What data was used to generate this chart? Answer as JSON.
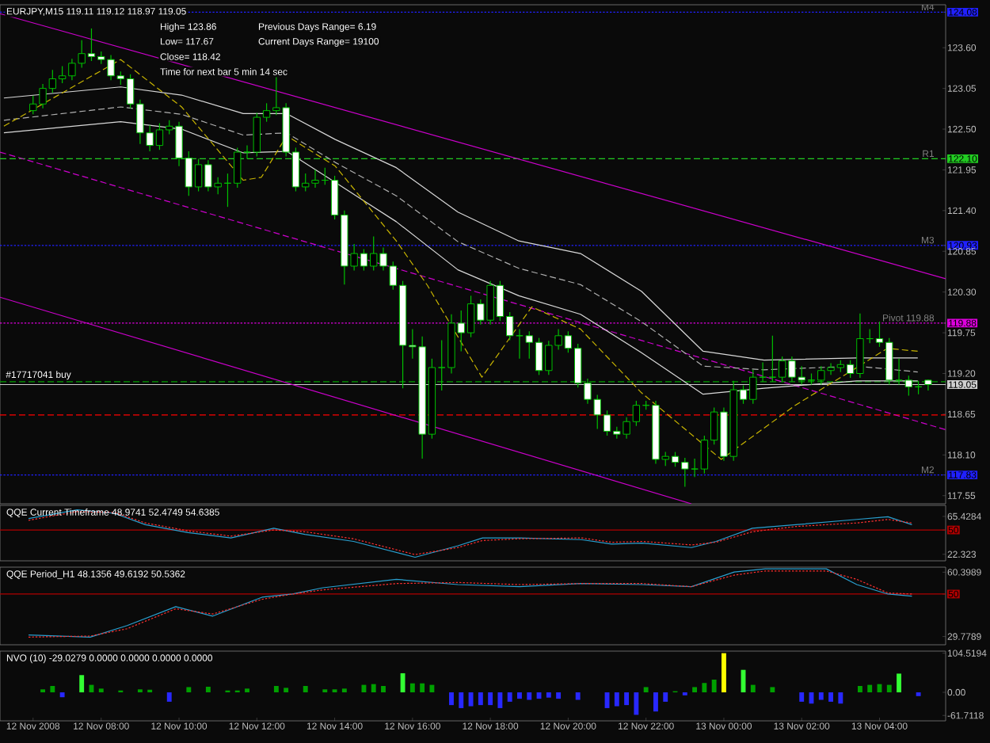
{
  "chart_data": [
    {
      "type": "candlestick",
      "title": "EURJPY,M15 119.11 119.12 118.97 119.05",
      "annotations": [
        "High= 123.86",
        "Previous Days Range= 6.19",
        "Low= 117.67",
        "Current Days Range= 19100",
        "Close= 118.42",
        "Time for next bar 5 min 14 sec",
        {
          "text": "#17717041 buy",
          "x": "2008-11-12T05:30",
          "y": 119.09
        }
      ],
      "x": [
        "2008-11-12T06:15",
        "2008-11-12T06:30",
        "2008-11-12T06:45",
        "2008-11-12T07:00",
        "2008-11-12T07:15",
        "2008-11-12T07:30",
        "2008-11-12T07:45",
        "2008-11-12T08:00",
        "2008-11-12T08:15",
        "2008-11-12T08:30",
        "2008-11-12T08:45",
        "2008-11-12T09:00",
        "2008-11-12T09:15",
        "2008-11-12T09:30",
        "2008-11-12T09:45",
        "2008-11-12T10:00",
        "2008-11-12T10:15",
        "2008-11-12T10:30",
        "2008-11-12T10:45",
        "2008-11-12T11:00",
        "2008-11-12T11:15",
        "2008-11-12T11:30",
        "2008-11-12T11:45",
        "2008-11-12T12:00",
        "2008-11-12T12:15",
        "2008-11-12T12:30",
        "2008-11-12T12:45",
        "2008-11-12T13:00",
        "2008-11-12T13:15",
        "2008-11-12T13:30",
        "2008-11-12T13:45",
        "2008-11-12T14:00",
        "2008-11-12T14:15",
        "2008-11-12T14:30",
        "2008-11-12T14:45",
        "2008-11-12T15:00",
        "2008-11-12T15:15",
        "2008-11-12T15:30",
        "2008-11-12T15:45",
        "2008-11-12T16:00",
        "2008-11-12T16:15",
        "2008-11-12T16:30",
        "2008-11-12T16:45",
        "2008-11-12T17:00",
        "2008-11-12T17:15",
        "2008-11-12T17:30",
        "2008-11-12T17:45",
        "2008-11-12T18:00",
        "2008-11-12T18:15",
        "2008-11-12T18:30",
        "2008-11-12T18:45",
        "2008-11-12T19:00",
        "2008-11-12T19:15",
        "2008-11-12T19:30",
        "2008-11-12T19:45",
        "2008-11-12T20:00",
        "2008-11-12T20:15",
        "2008-11-12T20:30",
        "2008-11-12T20:45",
        "2008-11-12T21:00",
        "2008-11-12T21:15",
        "2008-11-12T21:30",
        "2008-11-12T21:45",
        "2008-11-12T22:00",
        "2008-11-12T22:15",
        "2008-11-12T22:30",
        "2008-11-12T22:45",
        "2008-11-12T23:00",
        "2008-11-12T23:15",
        "2008-11-12T23:30",
        "2008-11-12T23:45",
        "2008-11-13T00:00",
        "2008-11-13T00:15",
        "2008-11-13T00:30",
        "2008-11-13T00:45",
        "2008-11-13T01:00",
        "2008-11-13T01:15",
        "2008-11-13T01:30",
        "2008-11-13T01:45",
        "2008-11-13T02:00",
        "2008-11-13T02:15",
        "2008-11-13T02:30",
        "2008-11-13T02:45",
        "2008-11-13T03:00",
        "2008-11-13T03:15",
        "2008-11-13T03:30",
        "2008-11-13T03:45",
        "2008-11-13T04:00",
        "2008-11-13T04:15",
        "2008-11-13T04:30",
        "2008-11-13T04:45",
        "2008-11-13T05:00",
        "2008-11-13T05:15"
      ],
      "ohlc": [
        [
          122.75,
          122.95,
          122.7,
          122.84
        ],
        [
          122.84,
          123.11,
          122.78,
          123.05
        ],
        [
          123.05,
          123.3,
          122.99,
          123.18
        ],
        [
          123.18,
          123.35,
          123.12,
          123.22
        ],
        [
          123.22,
          123.45,
          123.16,
          123.39
        ],
        [
          123.39,
          123.7,
          123.33,
          123.52
        ],
        [
          123.52,
          123.86,
          123.42,
          123.48
        ],
        [
          123.48,
          123.55,
          123.38,
          123.44
        ],
        [
          123.44,
          123.5,
          123.16,
          123.22
        ],
        [
          123.22,
          123.28,
          123.1,
          123.18
        ],
        [
          123.18,
          123.24,
          122.78,
          122.84
        ],
        [
          122.84,
          122.9,
          122.3,
          122.45
        ],
        [
          122.45,
          122.55,
          122.2,
          122.28
        ],
        [
          122.28,
          122.58,
          122.22,
          122.49
        ],
        [
          122.49,
          122.62,
          122.43,
          122.54
        ],
        [
          122.54,
          122.6,
          122.0,
          122.11
        ],
        [
          122.11,
          122.2,
          121.6,
          121.72
        ],
        [
          121.72,
          122.1,
          121.66,
          122.02
        ],
        [
          122.02,
          122.08,
          121.66,
          121.72
        ],
        [
          121.72,
          121.85,
          121.62,
          121.77
        ],
        [
          121.77,
          121.9,
          121.45,
          121.77
        ],
        [
          121.77,
          122.25,
          121.71,
          122.19
        ],
        [
          122.19,
          122.28,
          122.1,
          122.19
        ],
        [
          122.19,
          122.72,
          122.13,
          122.66
        ],
        [
          122.66,
          122.85,
          122.6,
          122.75
        ],
        [
          122.75,
          123.2,
          122.69,
          122.79
        ],
        [
          122.79,
          122.85,
          122.13,
          122.19
        ],
        [
          122.19,
          122.25,
          121.66,
          121.72
        ],
        [
          121.72,
          121.9,
          121.66,
          121.77
        ],
        [
          121.77,
          121.95,
          121.71,
          121.81
        ],
        [
          121.81,
          121.98,
          121.75,
          121.81
        ],
        [
          121.81,
          121.87,
          121.28,
          121.34
        ],
        [
          121.34,
          121.4,
          120.4,
          120.65
        ],
        [
          120.65,
          120.95,
          120.59,
          120.82
        ],
        [
          120.82,
          120.88,
          120.59,
          120.65
        ],
        [
          120.65,
          121.05,
          120.59,
          120.82
        ],
        [
          120.82,
          120.9,
          120.59,
          120.65
        ],
        [
          120.65,
          120.71,
          120.33,
          120.39
        ],
        [
          120.39,
          120.45,
          119.0,
          119.58
        ],
        [
          119.58,
          119.8,
          119.4,
          119.56
        ],
        [
          119.56,
          119.7,
          118.05,
          118.38
        ],
        [
          118.38,
          119.4,
          118.32,
          119.28
        ],
        [
          119.28,
          119.65,
          118.97,
          119.28
        ],
        [
          119.28,
          120.0,
          119.2,
          119.88
        ],
        [
          119.88,
          120.05,
          119.5,
          119.75
        ],
        [
          119.75,
          120.25,
          119.69,
          120.14
        ],
        [
          120.14,
          120.2,
          119.86,
          119.92
        ],
        [
          119.92,
          120.45,
          119.86,
          120.39
        ],
        [
          120.39,
          120.45,
          119.91,
          119.97
        ],
        [
          119.97,
          120.03,
          119.65,
          119.71
        ],
        [
          119.71,
          119.8,
          119.4,
          119.71
        ],
        [
          119.71,
          119.77,
          119.4,
          119.62
        ],
        [
          119.62,
          119.68,
          119.18,
          119.24
        ],
        [
          119.24,
          119.64,
          119.18,
          119.58
        ],
        [
          119.58,
          119.8,
          119.52,
          119.71
        ],
        [
          119.71,
          119.77,
          119.48,
          119.54
        ],
        [
          119.54,
          119.6,
          119.01,
          119.07
        ],
        [
          119.07,
          119.13,
          118.79,
          118.85
        ],
        [
          118.85,
          118.91,
          118.45,
          118.64
        ],
        [
          118.64,
          118.7,
          118.36,
          118.42
        ],
        [
          118.42,
          118.48,
          118.32,
          118.38
        ],
        [
          118.38,
          118.61,
          118.32,
          118.55
        ],
        [
          118.55,
          118.83,
          118.49,
          118.77
        ],
        [
          118.77,
          118.83,
          118.71,
          118.77
        ],
        [
          118.77,
          118.83,
          117.98,
          118.04
        ],
        [
          118.04,
          118.14,
          117.95,
          118.08
        ],
        [
          118.08,
          118.14,
          117.94,
          118.0
        ],
        [
          118.0,
          118.06,
          117.67,
          117.91
        ],
        [
          117.91,
          118.05,
          117.8,
          117.91
        ],
        [
          117.91,
          118.36,
          117.85,
          118.3
        ],
        [
          118.3,
          118.74,
          118.24,
          118.68
        ],
        [
          118.68,
          118.74,
          118.02,
          118.08
        ],
        [
          118.08,
          119.1,
          118.02,
          118.98
        ],
        [
          118.98,
          119.04,
          118.79,
          118.85
        ],
        [
          118.85,
          119.25,
          118.79,
          119.15
        ],
        [
          119.15,
          119.35,
          119.09,
          119.15
        ],
        [
          119.15,
          119.71,
          119.09,
          119.15
        ],
        [
          119.15,
          119.43,
          119.09,
          119.37
        ],
        [
          119.37,
          119.43,
          119.09,
          119.15
        ],
        [
          119.15,
          119.3,
          119.05,
          119.11
        ],
        [
          119.11,
          119.2,
          119.05,
          119.11
        ],
        [
          119.11,
          119.3,
          119.05,
          119.24
        ],
        [
          119.24,
          119.34,
          119.18,
          119.28
        ],
        [
          119.28,
          119.38,
          119.22,
          119.32
        ],
        [
          119.32,
          119.38,
          119.14,
          119.2
        ],
        [
          119.2,
          120.01,
          119.14,
          119.67
        ],
        [
          119.67,
          119.8,
          119.61,
          119.67
        ],
        [
          119.67,
          119.9,
          119.56,
          119.62
        ],
        [
          119.62,
          119.68,
          119.05,
          119.11
        ],
        [
          119.11,
          119.4,
          119.05,
          119.11
        ],
        [
          119.11,
          119.17,
          118.9,
          119.02
        ],
        [
          119.02,
          119.1,
          118.92,
          119.02
        ],
        [
          119.11,
          119.12,
          118.97,
          119.05
        ]
      ],
      "series": [
        {
          "type": "line",
          "color": "#cc00cc",
          "line_style": "solid",
          "x": [
            "2008-11-12T05:24",
            "2008-11-13T05:42"
          ],
          "values": [
            124.06,
            120.48
          ]
        },
        {
          "type": "line",
          "color": "#cc00cc",
          "line_style": "dashed",
          "x": [
            "2008-11-12T05:24",
            "2008-11-13T05:42"
          ],
          "values": [
            122.19,
            118.44
          ]
        },
        {
          "type": "line",
          "color": "#cc00cc",
          "line_style": "solid",
          "x": [
            "2008-11-12T05:24",
            "2008-11-12T23:10"
          ],
          "values": [
            120.23,
            117.44
          ]
        },
        {
          "type": "line",
          "color": "#d8d8d8",
          "line_style": "solid",
          "x": [
            "2008-11-12T05:30",
            "2008-11-12T08:30",
            "2008-11-12T10:04",
            "2008-11-12T11:39",
            "2008-11-12T12:46",
            "2008-11-12T14:01",
            "2008-11-12T15:35",
            "2008-11-12T17:10",
            "2008-11-12T18:44",
            "2008-11-12T20:19",
            "2008-11-12T21:53",
            "2008-11-12T23:28",
            "2008-11-13T01:02",
            "2008-11-13T03:25",
            "2008-11-13T04:59"
          ],
          "values": [
            122.92,
            123.07,
            122.96,
            122.71,
            122.71,
            122.36,
            121.98,
            121.38,
            120.99,
            120.82,
            120.31,
            119.5,
            119.38,
            119.41,
            119.41
          ]
        },
        {
          "type": "line",
          "color": "#b0b0b0",
          "line_style": "dashed",
          "x": [
            "2008-11-12T05:30",
            "2008-11-12T08:30",
            "2008-11-12T10:04",
            "2008-11-12T11:39",
            "2008-11-12T12:46",
            "2008-11-12T14:01",
            "2008-11-12T15:35",
            "2008-11-12T17:10",
            "2008-11-12T18:44",
            "2008-11-12T20:19",
            "2008-11-12T21:53",
            "2008-11-12T23:28",
            "2008-11-13T01:02",
            "2008-11-13T03:25",
            "2008-11-13T04:59"
          ],
          "values": [
            122.62,
            122.8,
            122.7,
            122.42,
            122.45,
            122.05,
            121.6,
            120.98,
            120.62,
            120.4,
            119.9,
            119.3,
            119.25,
            119.3,
            119.22
          ]
        },
        {
          "type": "line",
          "color": "#d8d8d8",
          "line_style": "solid",
          "x": [
            "2008-11-12T05:30",
            "2008-11-12T08:30",
            "2008-11-12T10:04",
            "2008-11-12T11:39",
            "2008-11-12T12:46",
            "2008-11-12T14:01",
            "2008-11-12T15:35",
            "2008-11-12T17:10",
            "2008-11-12T18:44",
            "2008-11-12T20:19",
            "2008-11-12T21:53",
            "2008-11-12T23:28",
            "2008-11-13T01:02",
            "2008-11-13T03:25",
            "2008-11-13T04:59"
          ],
          "values": [
            122.45,
            122.6,
            122.5,
            122.18,
            122.2,
            121.78,
            121.25,
            120.6,
            120.25,
            120.0,
            119.48,
            118.92,
            119.0,
            119.1,
            119.1
          ]
        },
        {
          "type": "line",
          "color": "#c8b400",
          "line_style": "dashed",
          "x": [
            "2008-11-12T05:30",
            "2008-11-12T08:30",
            "2008-11-12T10:04",
            "2008-11-12T11:39",
            "2008-11-12T12:07",
            "2008-11-12T12:46",
            "2008-11-12T14:01",
            "2008-11-12T15:35",
            "2008-11-12T16:23",
            "2008-11-12T17:47",
            "2008-11-12T19:04",
            "2008-11-12T20:19",
            "2008-11-12T21:53",
            "2008-11-12T23:56",
            "2008-11-13T01:50",
            "2008-11-13T03:25",
            "2008-11-13T04:12",
            "2008-11-13T04:59"
          ],
          "values": [
            122.54,
            123.44,
            122.8,
            121.81,
            121.85,
            122.41,
            122.0,
            120.99,
            120.39,
            119.15,
            120.1,
            119.8,
            118.94,
            118.04,
            118.77,
            119.28,
            119.54,
            119.5
          ]
        }
      ],
      "ref_lines": [
        {
          "axis": "y",
          "value": 124.08,
          "label": "M4",
          "color": "#2020ff",
          "line_style": "dotted"
        },
        {
          "axis": "y",
          "value": 122.1,
          "label": "R1",
          "color": "#22cc22",
          "line_style": "dashed"
        },
        {
          "axis": "y",
          "value": 120.93,
          "label": "M3",
          "color": "#2020ff",
          "line_style": "dotted"
        },
        {
          "axis": "y",
          "value": 119.88,
          "label": "Pivot 119.88",
          "color": "#dd00dd",
          "line_style": "dotted"
        },
        {
          "axis": "y",
          "value": 119.09,
          "color": "#00a000",
          "line_style": "dashed"
        },
        {
          "axis": "y",
          "value": 119.05,
          "color": "#d0d0d0",
          "line_style": "solid"
        },
        {
          "axis": "y",
          "value": 118.64,
          "color": "#ff0000",
          "line_style": "dashed"
        },
        {
          "axis": "y",
          "value": 117.83,
          "label": "M2",
          "color": "#2020ff",
          "line_style": "dotted"
        }
      ],
      "xlim": [
        "2008-11-12T05:24",
        "2008-11-13T05:42"
      ],
      "ylim": [
        117.44,
        124.18
      ],
      "yticks": [
        124.08,
        {
          "value": 123.6,
          "label": "123.60"
        },
        123.05,
        {
          "value": 122.5,
          "label": "122.50"
        },
        {
          "value": 122.1,
          "label": "122.10"
        },
        121.95,
        {
          "value": 121.4,
          "label": "121.40"
        },
        120.93,
        120.85,
        {
          "value": 120.3,
          "label": "120.30"
        },
        119.88,
        119.75,
        {
          "value": 119.2,
          "label": "119.20"
        },
        119.05,
        118.65,
        {
          "value": 118.1,
          "label": "118.10"
        },
        117.83,
        117.55
      ],
      "tick_labels": "y"
    },
    {
      "type": "line",
      "title": "QQE Current Timeframe 48.9741 52.4749 54.6385",
      "x": [
        "2008-11-12T06:08",
        "2008-11-12T07:23",
        "2008-11-12T08:20",
        "2008-11-12T09:08",
        "2008-11-12T10:14",
        "2008-11-12T11:20",
        "2008-11-12T12:26",
        "2008-11-12T13:14",
        "2008-11-12T14:29",
        "2008-11-12T16:04",
        "2008-11-12T17:10",
        "2008-11-12T17:48",
        "2008-11-12T18:45",
        "2008-11-12T20:20",
        "2008-11-12T21:07",
        "2008-11-12T21:54",
        "2008-11-12T23:10",
        "2008-11-12T23:48",
        "2008-11-13T00:44",
        "2008-11-13T01:51",
        "2008-11-13T03:25",
        "2008-11-13T04:13",
        "2008-11-13T04:50"
      ],
      "series": [
        {
          "color": "#2aa0d0",
          "line_style": "solid",
          "values": [
            63,
            73,
            69,
            56,
            47,
            41,
            52,
            45,
            37,
            19,
            32,
            41,
            41,
            39,
            34,
            35,
            30,
            37,
            52,
            56,
            62,
            65,
            56
          ]
        },
        {
          "color": "#ff3030",
          "line_style": "dotted",
          "values": [
            61,
            71,
            70,
            58,
            49,
            43,
            50,
            48,
            40,
            22,
            30,
            38,
            40,
            41,
            36,
            37,
            33,
            36,
            48,
            54,
            58,
            62,
            58
          ]
        }
      ],
      "ref_lines": [
        {
          "axis": "y",
          "value": 50,
          "color": "#b00000",
          "line_style": "solid"
        }
      ],
      "xlim": [
        "2008-11-12T05:24",
        "2008-11-13T05:42"
      ],
      "ylim": [
        14.9,
        78
      ],
      "yticks": [
        65.4284,
        50,
        22.323
      ],
      "tick_labels": "y"
    },
    {
      "type": "line",
      "title": "QQE Period_H1 48.1356 49.6192 50.5362",
      "x": [
        "2008-11-12T06:08",
        "2008-11-12T07:43",
        "2008-11-12T08:40",
        "2008-11-12T09:55",
        "2008-11-12T10:52",
        "2008-11-12T12:08",
        "2008-11-12T12:55",
        "2008-11-12T13:42",
        "2008-11-12T15:35",
        "2008-11-12T17:10",
        "2008-11-12T18:45",
        "2008-11-12T20:20",
        "2008-11-12T21:54",
        "2008-11-12T23:10",
        "2008-11-13T00:16",
        "2008-11-13T01:04",
        "2008-11-13T02:38",
        "2008-11-13T03:25",
        "2008-11-13T04:13",
        "2008-11-13T04:50"
      ],
      "series": [
        {
          "color": "#2aa0d0",
          "line_style": "solid",
          "values": [
            30.5,
            29.5,
            35,
            44,
            39.5,
            48.5,
            50,
            53,
            57,
            54.5,
            53.5,
            55,
            54.5,
            53.5,
            60.5,
            62,
            62,
            54.5,
            50,
            49
          ]
        },
        {
          "color": "#ff3030",
          "line_style": "dotted",
          "values": [
            29.5,
            30,
            33.5,
            43,
            40.5,
            47.5,
            50,
            52,
            55,
            55.5,
            54.5,
            55,
            55,
            53.5,
            59,
            61,
            61,
            57,
            50.5,
            50
          ]
        }
      ],
      "ref_lines": [
        {
          "axis": "y",
          "value": 50,
          "color": "#b00000",
          "line_style": "solid"
        }
      ],
      "xlim": [
        "2008-11-12T05:24",
        "2008-11-13T05:42"
      ],
      "ylim": [
        25.85,
        62.8
      ],
      "yticks": [
        60.3989,
        50,
        29.7789
      ],
      "tick_labels": "y"
    },
    {
      "type": "bar",
      "title": "NVO (10) -29.0279 0.0000 0.0000 0.0000 0.0000",
      "x": [
        "2008-11-12T06:30",
        "2008-11-12T06:45",
        "2008-11-12T07:00",
        "2008-11-12T07:15",
        "2008-11-12T07:30",
        "2008-11-12T07:45",
        "2008-11-12T08:00",
        "2008-11-12T08:15",
        "2008-11-12T08:30",
        "2008-11-12T08:45",
        "2008-11-12T09:00",
        "2008-11-12T09:15",
        "2008-11-12T09:30",
        "2008-11-12T09:45",
        "2008-11-12T10:00",
        "2008-11-12T10:15",
        "2008-11-12T10:30",
        "2008-11-12T10:45",
        "2008-11-12T11:00",
        "2008-11-12T11:15",
        "2008-11-12T11:30",
        "2008-11-12T11:45",
        "2008-11-12T12:00",
        "2008-11-12T12:15",
        "2008-11-12T12:30",
        "2008-11-12T12:45",
        "2008-11-12T13:00",
        "2008-11-12T13:15",
        "2008-11-12T13:30",
        "2008-11-12T13:45",
        "2008-11-12T14:00",
        "2008-11-12T14:15",
        "2008-11-12T14:30",
        "2008-11-12T14:45",
        "2008-11-12T15:00",
        "2008-11-12T15:15",
        "2008-11-12T15:30",
        "2008-11-12T15:45",
        "2008-11-12T16:00",
        "2008-11-12T16:15",
        "2008-11-12T16:30",
        "2008-11-12T16:45",
        "2008-11-12T17:00",
        "2008-11-12T17:15",
        "2008-11-12T17:30",
        "2008-11-12T17:45",
        "2008-11-12T18:00",
        "2008-11-12T18:15",
        "2008-11-12T18:30",
        "2008-11-12T18:45",
        "2008-11-12T19:00",
        "2008-11-12T19:15",
        "2008-11-12T19:30",
        "2008-11-12T19:45",
        "2008-11-12T20:00",
        "2008-11-12T20:15",
        "2008-11-12T20:30",
        "2008-11-12T20:45",
        "2008-11-12T21:00",
        "2008-11-12T21:15",
        "2008-11-12T21:30",
        "2008-11-12T21:45",
        "2008-11-12T22:00",
        "2008-11-12T22:15",
        "2008-11-12T22:30",
        "2008-11-12T22:45",
        "2008-11-12T23:00",
        "2008-11-12T23:15",
        "2008-11-12T23:30",
        "2008-11-12T23:45",
        "2008-11-13T00:00",
        "2008-11-13T00:15",
        "2008-11-13T00:30",
        "2008-11-13T00:45",
        "2008-11-13T01:00",
        "2008-11-13T01:15",
        "2008-11-13T01:30",
        "2008-11-13T01:45",
        "2008-11-13T02:00",
        "2008-11-13T02:15",
        "2008-11-13T02:30",
        "2008-11-13T02:45",
        "2008-11-13T03:00",
        "2008-11-13T03:15",
        "2008-11-13T03:30",
        "2008-11-13T03:45",
        "2008-11-13T04:00",
        "2008-11-13T04:15",
        "2008-11-13T04:30",
        "2008-11-13T04:45",
        "2008-11-13T05:00"
      ],
      "values": [
        8,
        17,
        -13,
        null,
        46,
        20,
        10,
        null,
        5,
        null,
        8,
        7,
        null,
        -25,
        null,
        14,
        null,
        15,
        null,
        5,
        5,
        10,
        null,
        null,
        17,
        12,
        null,
        17,
        null,
        8,
        8,
        10,
        null,
        20,
        22,
        17,
        null,
        51,
        24,
        24,
        20,
        null,
        -34,
        -42,
        -37,
        -34,
        -34,
        -42,
        -25,
        -17,
        -20,
        -17,
        -14,
        -17,
        null,
        -20,
        null,
        null,
        -42,
        -37,
        -34,
        -60,
        14,
        -51,
        -25,
        3,
        -8,
        14,
        25,
        34,
        104.5194,
        null,
        60,
        20,
        null,
        14,
        null,
        null,
        -25,
        -30,
        -20,
        -25,
        -30,
        null,
        17,
        20,
        22,
        20,
        50,
        null,
        -10
      ],
      "colors": [
        "#00a000",
        "#00a000",
        "#2828ff",
        null,
        "#33ff33",
        "#00a000",
        "#00a000",
        null,
        "#00a000",
        null,
        "#00a000",
        "#00a000",
        null,
        "#2828ff",
        null,
        "#00a000",
        null,
        "#00a000",
        null,
        "#00a000",
        "#00a000",
        "#00a000",
        null,
        null,
        "#00a000",
        "#00a000",
        null,
        "#00a000",
        null,
        "#00a000",
        "#00a000",
        "#00a000",
        null,
        "#00a000",
        "#00a000",
        "#00a000",
        null,
        "#33ff33",
        "#00a000",
        "#00a000",
        "#00a000",
        null,
        "#2828ff",
        "#2828ff",
        "#2828ff",
        "#2828ff",
        "#2828ff",
        "#2828ff",
        "#2828ff",
        "#2828ff",
        "#2828ff",
        "#2828ff",
        "#2828ff",
        "#2828ff",
        null,
        "#2828ff",
        null,
        null,
        "#2828ff",
        "#2828ff",
        "#2828ff",
        "#2828ff",
        "#00a000",
        "#2828ff",
        "#2828ff",
        "#00a000",
        "#2828ff",
        "#00a000",
        "#00a000",
        "#00a000",
        "#ffff00",
        null,
        "#33ff33",
        "#00a000",
        null,
        "#00a000",
        null,
        null,
        "#2828ff",
        "#2828ff",
        "#2828ff",
        "#2828ff",
        "#2828ff",
        null,
        "#00a000",
        "#00a000",
        "#00a000",
        "#00a000",
        "#33ff33",
        null,
        "#2828ff"
      ],
      "xlim": [
        "2008-11-12T05:24",
        "2008-11-13T05:42"
      ],
      "ylim": [
        -76,
        110
      ],
      "xticks": [
        {
          "value": "2008-11-12T06:15",
          "label": "12 Nov 2008"
        },
        {
          "value": "2008-11-12T08:00",
          "label": "12 Nov 08:00"
        },
        {
          "value": "2008-11-12T10:00",
          "label": "12 Nov 10:00"
        },
        {
          "value": "2008-11-12T12:00",
          "label": "12 Nov 12:00"
        },
        {
          "value": "2008-11-12T14:00",
          "label": "12 Nov 14:00"
        },
        {
          "value": "2008-11-12T16:00",
          "label": "12 Nov 16:00"
        },
        {
          "value": "2008-11-12T18:00",
          "label": "12 Nov 18:00"
        },
        {
          "value": "2008-11-12T20:00",
          "label": "12 Nov 20:00"
        },
        {
          "value": "2008-11-12T22:00",
          "label": "12 Nov 22:00"
        },
        {
          "value": "2008-11-13T00:00",
          "label": "13 Nov 00:00"
        },
        {
          "value": "2008-11-13T02:00",
          "label": "13 Nov 02:00"
        },
        {
          "value": "2008-11-13T04:00",
          "label": "13 Nov 04:00"
        }
      ],
      "yticks": [
        104.5194,
        {
          "value": 0,
          "label": "0.00"
        },
        -61.7118
      ]
    }
  ]
}
